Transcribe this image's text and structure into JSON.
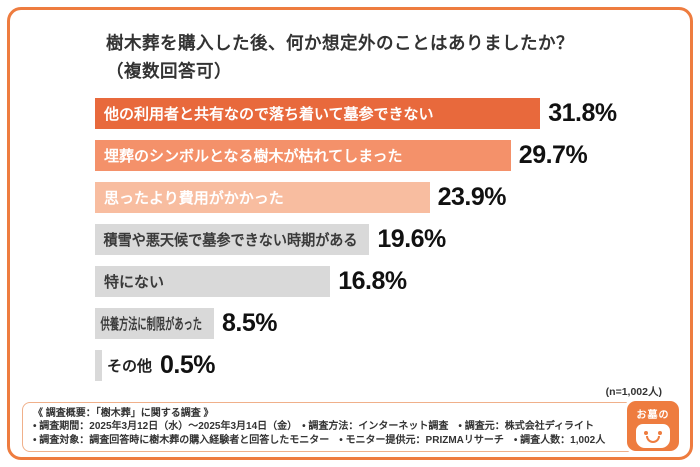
{
  "title": {
    "line1": "樹木葬を購入した後、何か想定外のことはありましたか？",
    "line2": "（複数回答可）"
  },
  "chart_data": {
    "type": "bar",
    "orientation": "horizontal",
    "title": "樹木葬を購入した後、何か想定外のことはありましたか？（複数回答可）",
    "categories": [
      "他の利用者と共有なので落ち着いて墓参できない",
      "埋葬のシンボルとなる樹木が枯れてしまった",
      "思ったより費用がかかった",
      "積雪や悪天候で墓参できない時期がある",
      "特にない",
      "供養方法に制限があった",
      "その他"
    ],
    "values": [
      31.8,
      29.7,
      23.9,
      19.6,
      16.8,
      8.5,
      0.5
    ],
    "value_labels": [
      "31.8%",
      "29.7%",
      "23.9%",
      "19.6%",
      "16.8%",
      "8.5%",
      "0.5%"
    ],
    "bar_colors": [
      "#e8693c",
      "#f4916a",
      "#f8bda0",
      "#d9d9d9",
      "#d9d9d9",
      "#d9d9d9",
      "#d9d9d9"
    ],
    "label_colors": [
      "#ffffff",
      "#ffffff",
      "#ffffff",
      "#3a3a3a",
      "#3a3a3a",
      "#3a3a3a",
      "#222222"
    ],
    "label_inside": [
      true,
      true,
      true,
      true,
      true,
      true,
      false
    ],
    "xlim": [
      0,
      35
    ],
    "xlabel": "",
    "ylabel": "",
    "legend": "none",
    "grid": false,
    "sample_size": "(n=1,002人)"
  },
  "sample_size": "(n=1,002人)",
  "footer": {
    "heading": "《 調査概要：「樹木葬」に関する調査 》",
    "line1": "• 調査期間：2025年3月12日（水）〜2025年3月14日（金）　• 調査方法：インターネット調査　• 調査元：株式会社ディライト",
    "line2": "• 調査対象：調査回答時に樹木葬の購入経験者と回答したモニター　• モニター提供元：PRIZMAリサーチ　• 調査人数：1,002人"
  },
  "logo": {
    "top": "お墓の"
  }
}
